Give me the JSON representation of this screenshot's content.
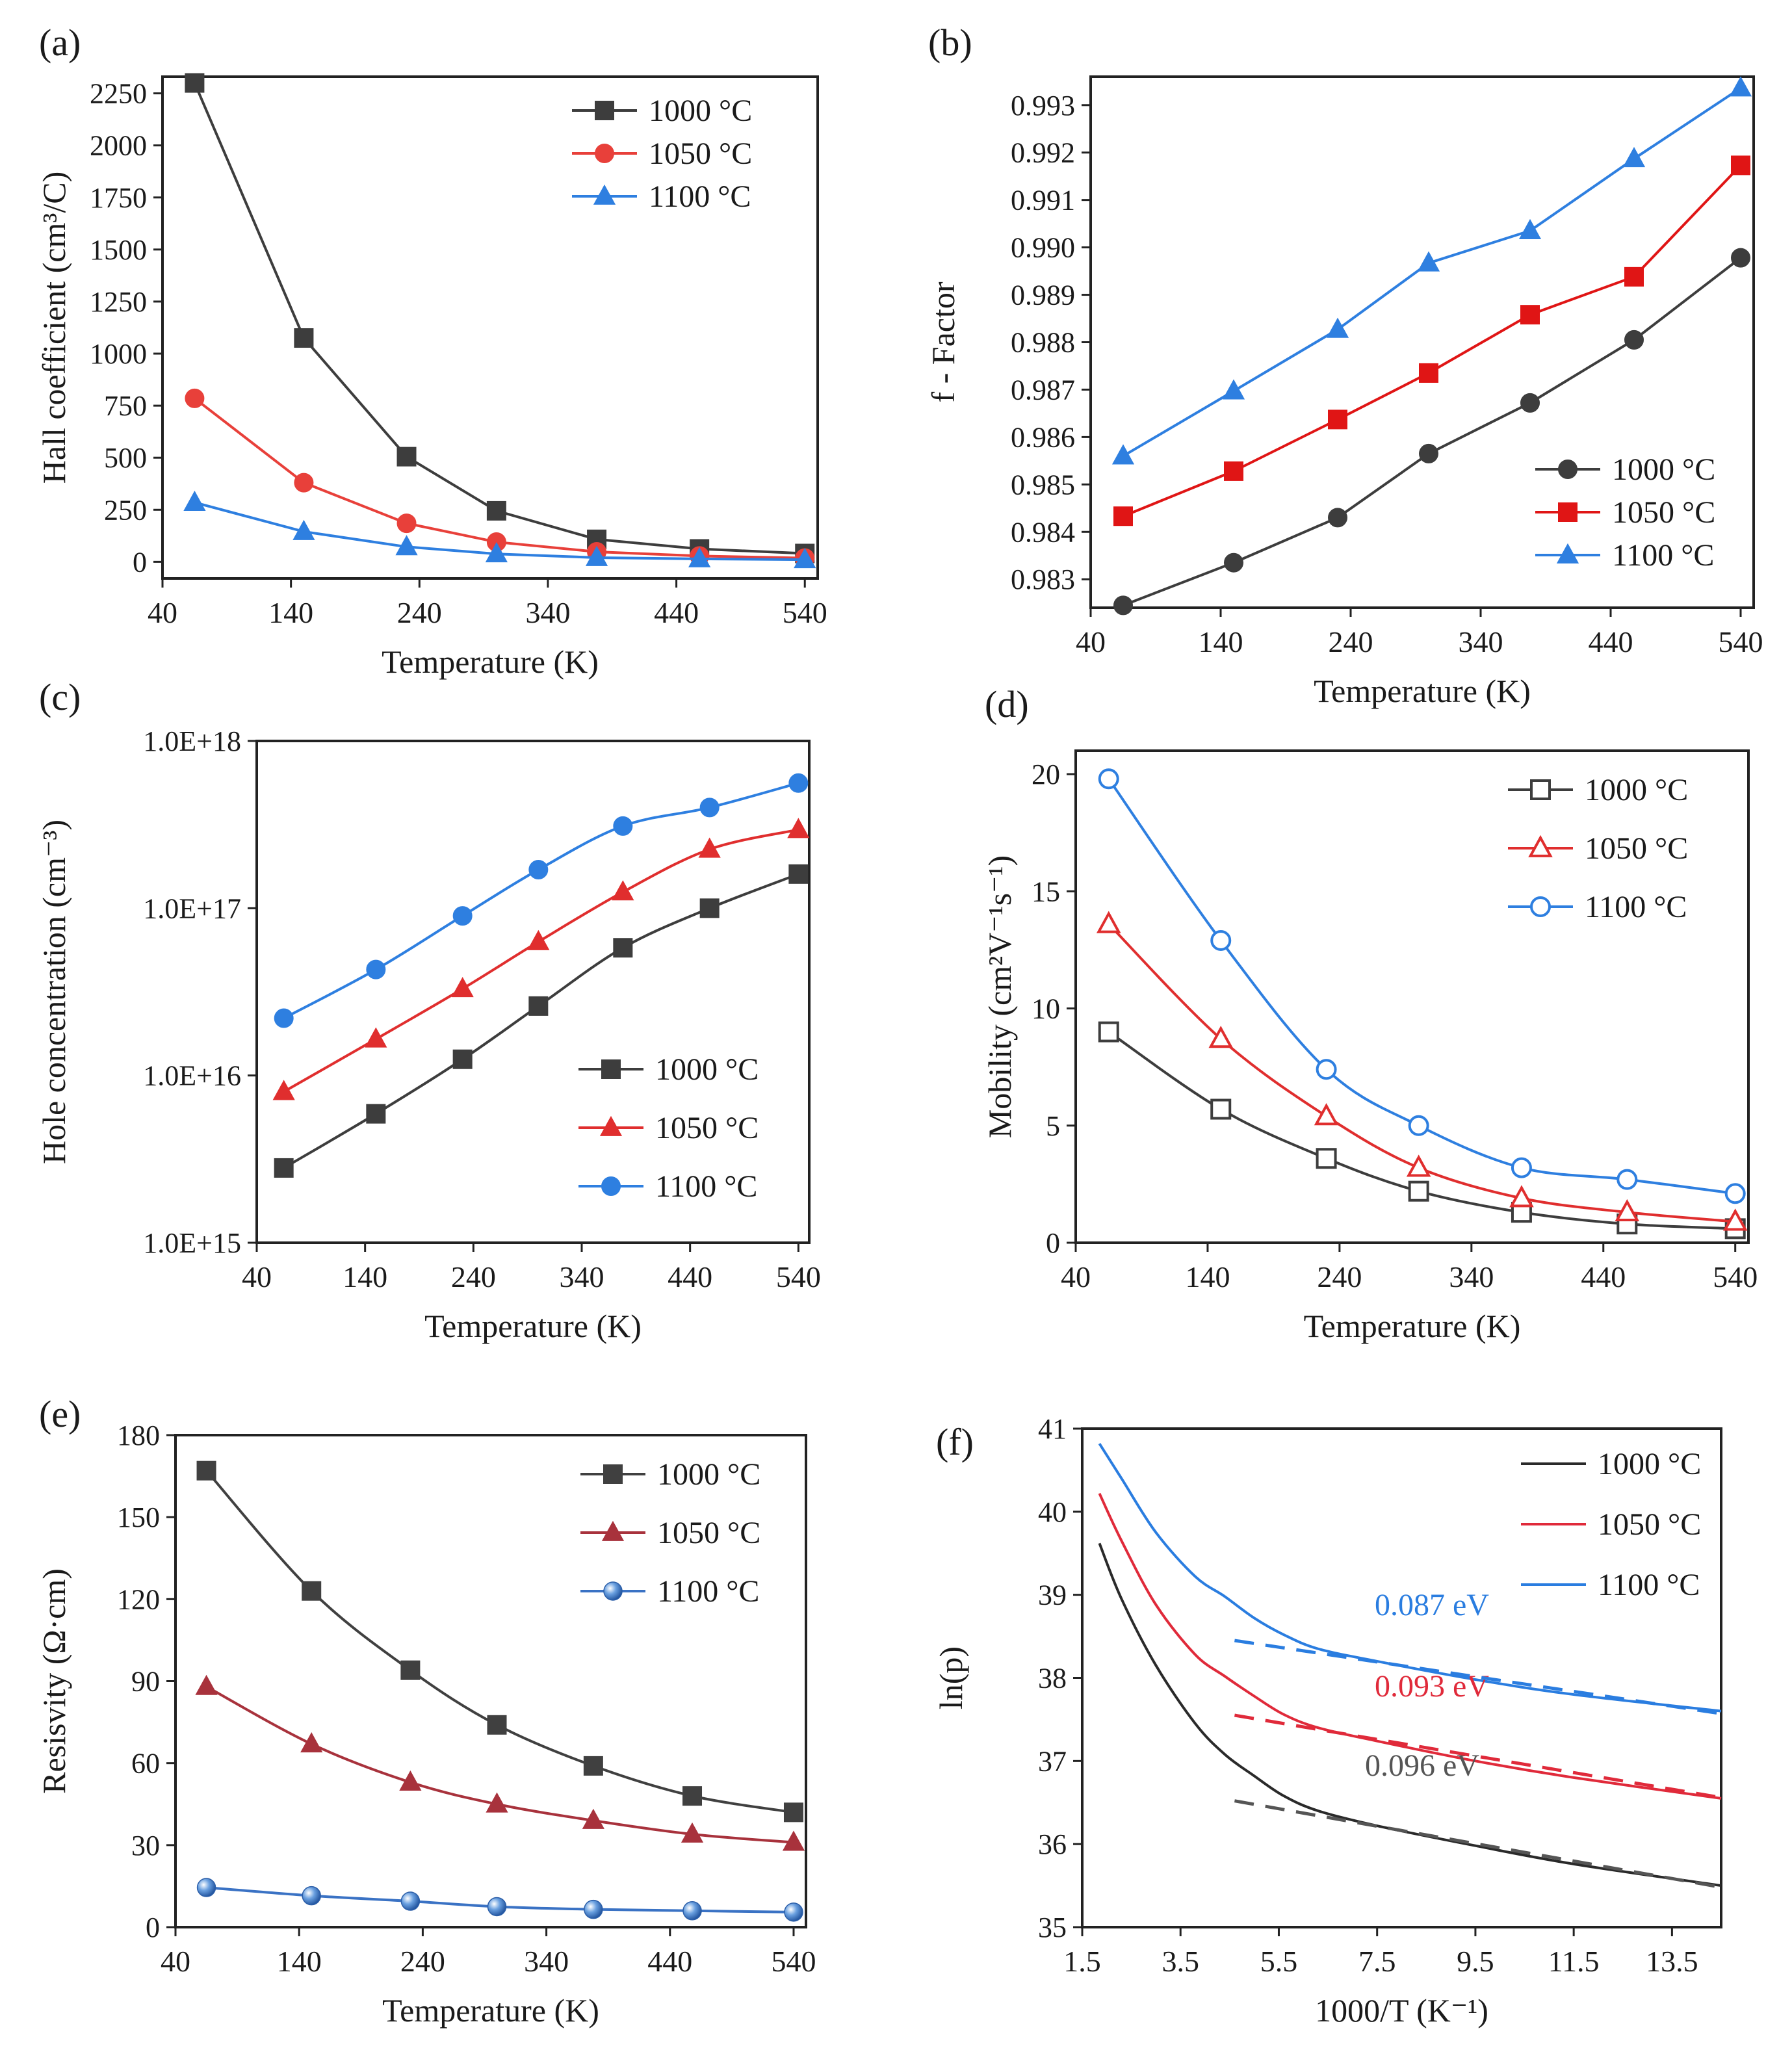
{
  "figure": {
    "background": "#ffffff"
  },
  "chart_data": [
    {
      "id": "a",
      "type": "line",
      "panel_label": "(a)",
      "title": "",
      "xlabel": "Temperature (K)",
      "ylabel": "Hall coefficient (cm³/C)",
      "xlim": [
        40,
        550
      ],
      "ylim": [
        -80,
        2330
      ],
      "xticks": [
        40,
        140,
        240,
        340,
        440,
        540
      ],
      "yticks": [
        0,
        250,
        500,
        750,
        1000,
        1250,
        1500,
        1750,
        2000,
        2250
      ],
      "ytick_labels": [
        "0",
        "250",
        "500",
        "750",
        "1000",
        "1250",
        "1500",
        "1750",
        "2000",
        "2250"
      ],
      "grid": false,
      "legend": "top-right",
      "x": [
        65,
        150,
        230,
        300,
        378,
        458,
        540
      ],
      "series": [
        {
          "name": "1000 °C",
          "color": "#3d3d3d",
          "marker": "square",
          "filled": true,
          "values": [
            2300,
            1075,
            505,
            245,
            108,
            62,
            40
          ]
        },
        {
          "name": "1050 °C",
          "color": "#e8403a",
          "marker": "circle",
          "filled": true,
          "values": [
            785,
            380,
            185,
            95,
            48,
            28,
            18
          ]
        },
        {
          "name": "1100 °C",
          "color": "#2e7fe0",
          "marker": "triangle",
          "filled": true,
          "values": [
            285,
            145,
            72,
            38,
            20,
            14,
            10
          ]
        }
      ]
    },
    {
      "id": "b",
      "type": "line",
      "panel_label": "(b)",
      "title": "",
      "xlabel": "Temperature (K)",
      "ylabel": "f - Factor",
      "xlim": [
        40,
        550
      ],
      "ylim": [
        0.9824,
        0.9936
      ],
      "xticks": [
        40,
        140,
        240,
        340,
        440,
        540
      ],
      "yticks": [
        0.983,
        0.984,
        0.985,
        0.986,
        0.987,
        0.988,
        0.989,
        0.99,
        0.991,
        0.992,
        0.993
      ],
      "ytick_labels": [
        "0.983",
        "0.984",
        "0.985",
        "0.986",
        "0.987",
        "0.988",
        "0.989",
        "0.990",
        "0.991",
        "0.992",
        "0.993"
      ],
      "grid": false,
      "legend": "bottom-right",
      "x": [
        65,
        150,
        230,
        300,
        378,
        458,
        540
      ],
      "series": [
        {
          "name": "1000 °C",
          "color": "#3d3d3d",
          "marker": "circle",
          "filled": true,
          "values": [
            0.98245,
            0.98335,
            0.9843,
            0.98565,
            0.98672,
            0.98805,
            0.98978
          ]
        },
        {
          "name": "1050 °C",
          "color": "#e01515",
          "marker": "square",
          "filled": true,
          "values": [
            0.98433,
            0.98528,
            0.98637,
            0.98735,
            0.98858,
            0.98938,
            0.99173
          ]
        },
        {
          "name": "1100 °C",
          "color": "#2e7fe0",
          "marker": "triangle",
          "filled": true,
          "values": [
            0.9856,
            0.98697,
            0.98827,
            0.98967,
            0.99035,
            0.99187,
            0.99336
          ]
        }
      ]
    },
    {
      "id": "c",
      "type": "line",
      "panel_label": "(c)",
      "title": "",
      "xlabel": "Temperature (K)",
      "ylabel": "Hole concentration (cm⁻³)",
      "yscale": "log",
      "xlim": [
        40,
        550
      ],
      "ylim": [
        1000000000000000.0,
        1e+18
      ],
      "xticks": [
        40,
        140,
        240,
        340,
        440,
        540
      ],
      "yticks": [
        1000000000000000.0,
        1e+16,
        1e+17,
        1e+18
      ],
      "ytick_labels": [
        "1.0E+15",
        "1.0E+16",
        "1.0E+17",
        "1.0E+18"
      ],
      "grid": false,
      "legend": "bottom-right",
      "x": [
        65,
        150,
        230,
        300,
        378,
        458,
        540
      ],
      "series": [
        {
          "name": "1000 °C",
          "color": "#3d3d3d",
          "marker": "square",
          "filled": true,
          "values": [
            2800000000000000.0,
            5900000000000000.0,
            1.25e+16,
            2.6e+16,
            5.8e+16,
            1e+17,
            1.6e+17
          ]
        },
        {
          "name": "1050 °C",
          "color": "#e02e2e",
          "marker": "triangle",
          "filled": true,
          "values": [
            8000000000000000.0,
            1.65e+16,
            3.3e+16,
            6.3e+16,
            1.25e+17,
            2.25e+17,
            2.95e+17
          ]
        },
        {
          "name": "1100 °C",
          "color": "#2e7fe0",
          "marker": "circle",
          "filled": true,
          "values": [
            2.2e+16,
            4.3e+16,
            9e+16,
            1.7e+17,
            3.1e+17,
            4e+17,
            5.6e+17
          ]
        }
      ]
    },
    {
      "id": "d",
      "type": "line",
      "panel_label": "(d)",
      "title": "",
      "xlabel": "Temperature (K)",
      "ylabel": "Mobility (cm²V⁻¹s⁻¹)",
      "xlim": [
        40,
        550
      ],
      "ylim": [
        0,
        21
      ],
      "xticks": [
        40,
        140,
        240,
        340,
        440,
        540
      ],
      "yticks": [
        0,
        5,
        10,
        15,
        20
      ],
      "ytick_labels": [
        "0",
        "5",
        "10",
        "15",
        "20"
      ],
      "grid": false,
      "legend": "top-right",
      "x": [
        65,
        150,
        230,
        300,
        378,
        458,
        540
      ],
      "series": [
        {
          "name": "1000 °C",
          "color": "#3d3d3d",
          "marker": "square",
          "filled": false,
          "values": [
            9.0,
            5.7,
            3.6,
            2.2,
            1.3,
            0.8,
            0.6
          ]
        },
        {
          "name": "1050 °C",
          "color": "#e02e2e",
          "marker": "triangle",
          "filled": false,
          "values": [
            13.6,
            8.7,
            5.4,
            3.2,
            1.9,
            1.3,
            0.9
          ]
        },
        {
          "name": "1100 °C",
          "color": "#2e7fe0",
          "marker": "circle",
          "filled": false,
          "values": [
            19.8,
            12.9,
            7.4,
            5.0,
            3.2,
            2.7,
            2.1
          ]
        }
      ]
    },
    {
      "id": "e",
      "type": "line",
      "panel_label": "(e)",
      "title": "",
      "xlabel": "Temperature (K)",
      "ylabel": "Resisvity (Ω·cm)",
      "xlim": [
        40,
        550
      ],
      "ylim": [
        0,
        180
      ],
      "xticks": [
        40,
        140,
        240,
        340,
        440,
        540
      ],
      "yticks": [
        0,
        30,
        60,
        90,
        120,
        150,
        180
      ],
      "ytick_labels": [
        "0",
        "30",
        "60",
        "90",
        "120",
        "150",
        "180"
      ],
      "grid": false,
      "legend": "top-right",
      "x": [
        65,
        150,
        230,
        300,
        378,
        458,
        540
      ],
      "series": [
        {
          "name": "1000 °C",
          "color": "#404040",
          "marker": "square",
          "filled": true,
          "values": [
            167,
            123,
            94,
            74,
            59,
            48,
            42
          ]
        },
        {
          "name": "1050 °C",
          "color": "#a8323c",
          "marker": "triangle",
          "filled": true,
          "values": [
            88,
            67,
            53,
            45,
            39,
            34,
            31
          ]
        },
        {
          "name": "1100 °C",
          "color": "#3a72c4",
          "marker": "sphere",
          "filled": true,
          "values": [
            14.5,
            11.5,
            9.5,
            7.5,
            6.5,
            6,
            5.5
          ]
        }
      ]
    },
    {
      "id": "f",
      "type": "line",
      "panel_label": "(f)",
      "title": "",
      "xlabel": "1000/T (K⁻¹)",
      "ylabel": "ln(p)",
      "xlim": [
        1.5,
        14.5
      ],
      "ylim": [
        35,
        41
      ],
      "xticks": [
        1.5,
        3.5,
        5.5,
        7.5,
        9.5,
        11.5,
        13.5
      ],
      "xtick_labels": [
        "1.5",
        "3.5",
        "5.5",
        "7.5",
        "9.5",
        "11.5",
        "13.5"
      ],
      "yticks": [
        35,
        36,
        37,
        38,
        39,
        40,
        41
      ],
      "ytick_labels": [
        "35",
        "36",
        "37",
        "38",
        "39",
        "40",
        "41"
      ],
      "grid": false,
      "legend": "top-right",
      "series": [
        {
          "name": "1000 °C",
          "color": "#2a2a2a",
          "marker": "none",
          "x": [
            1.85,
            2.3,
            3.0,
            3.8,
            4.4,
            5.0,
            5.6,
            6.3,
            7.5,
            9.5,
            11.5,
            14.5
          ],
          "values": [
            39.62,
            38.95,
            38.15,
            37.45,
            37.08,
            36.82,
            36.58,
            36.4,
            36.22,
            35.98,
            35.76,
            35.5
          ]
        },
        {
          "name": "1050 °C",
          "color": "#e02a3a",
          "marker": "none",
          "x": [
            1.85,
            2.3,
            3.0,
            3.8,
            4.4,
            5.0,
            5.6,
            6.3,
            7.5,
            9.5,
            11.5,
            14.5
          ],
          "values": [
            40.22,
            39.65,
            38.88,
            38.28,
            38.02,
            37.78,
            37.56,
            37.4,
            37.24,
            37.0,
            36.8,
            36.55
          ]
        },
        {
          "name": "1100 °C",
          "color": "#2a7de0",
          "marker": "none",
          "x": [
            1.85,
            2.3,
            3.0,
            3.8,
            4.4,
            5.0,
            5.6,
            6.3,
            7.5,
            9.5,
            11.5,
            14.5
          ],
          "values": [
            40.82,
            40.4,
            39.75,
            39.22,
            38.98,
            38.72,
            38.52,
            38.35,
            38.2,
            37.98,
            37.8,
            37.6
          ]
        }
      ],
      "fits": [
        {
          "name": "1000 °C fit",
          "color": "#555555",
          "x": [
            4.6,
            14.5
          ],
          "values": [
            36.52,
            35.48
          ],
          "label": "0.096 eV",
          "label_color": "#555555"
        },
        {
          "name": "1050 °C fit",
          "color": "#e02a3a",
          "x": [
            4.6,
            14.5
          ],
          "values": [
            37.55,
            36.56
          ],
          "label": "0.093 eV",
          "label_color": "#e02a3a"
        },
        {
          "name": "1100 °C fit",
          "color": "#2a7de0",
          "x": [
            4.6,
            14.5
          ],
          "values": [
            38.45,
            37.57
          ],
          "label": "0.087 eV",
          "label_color": "#2a7de0"
        }
      ]
    }
  ]
}
